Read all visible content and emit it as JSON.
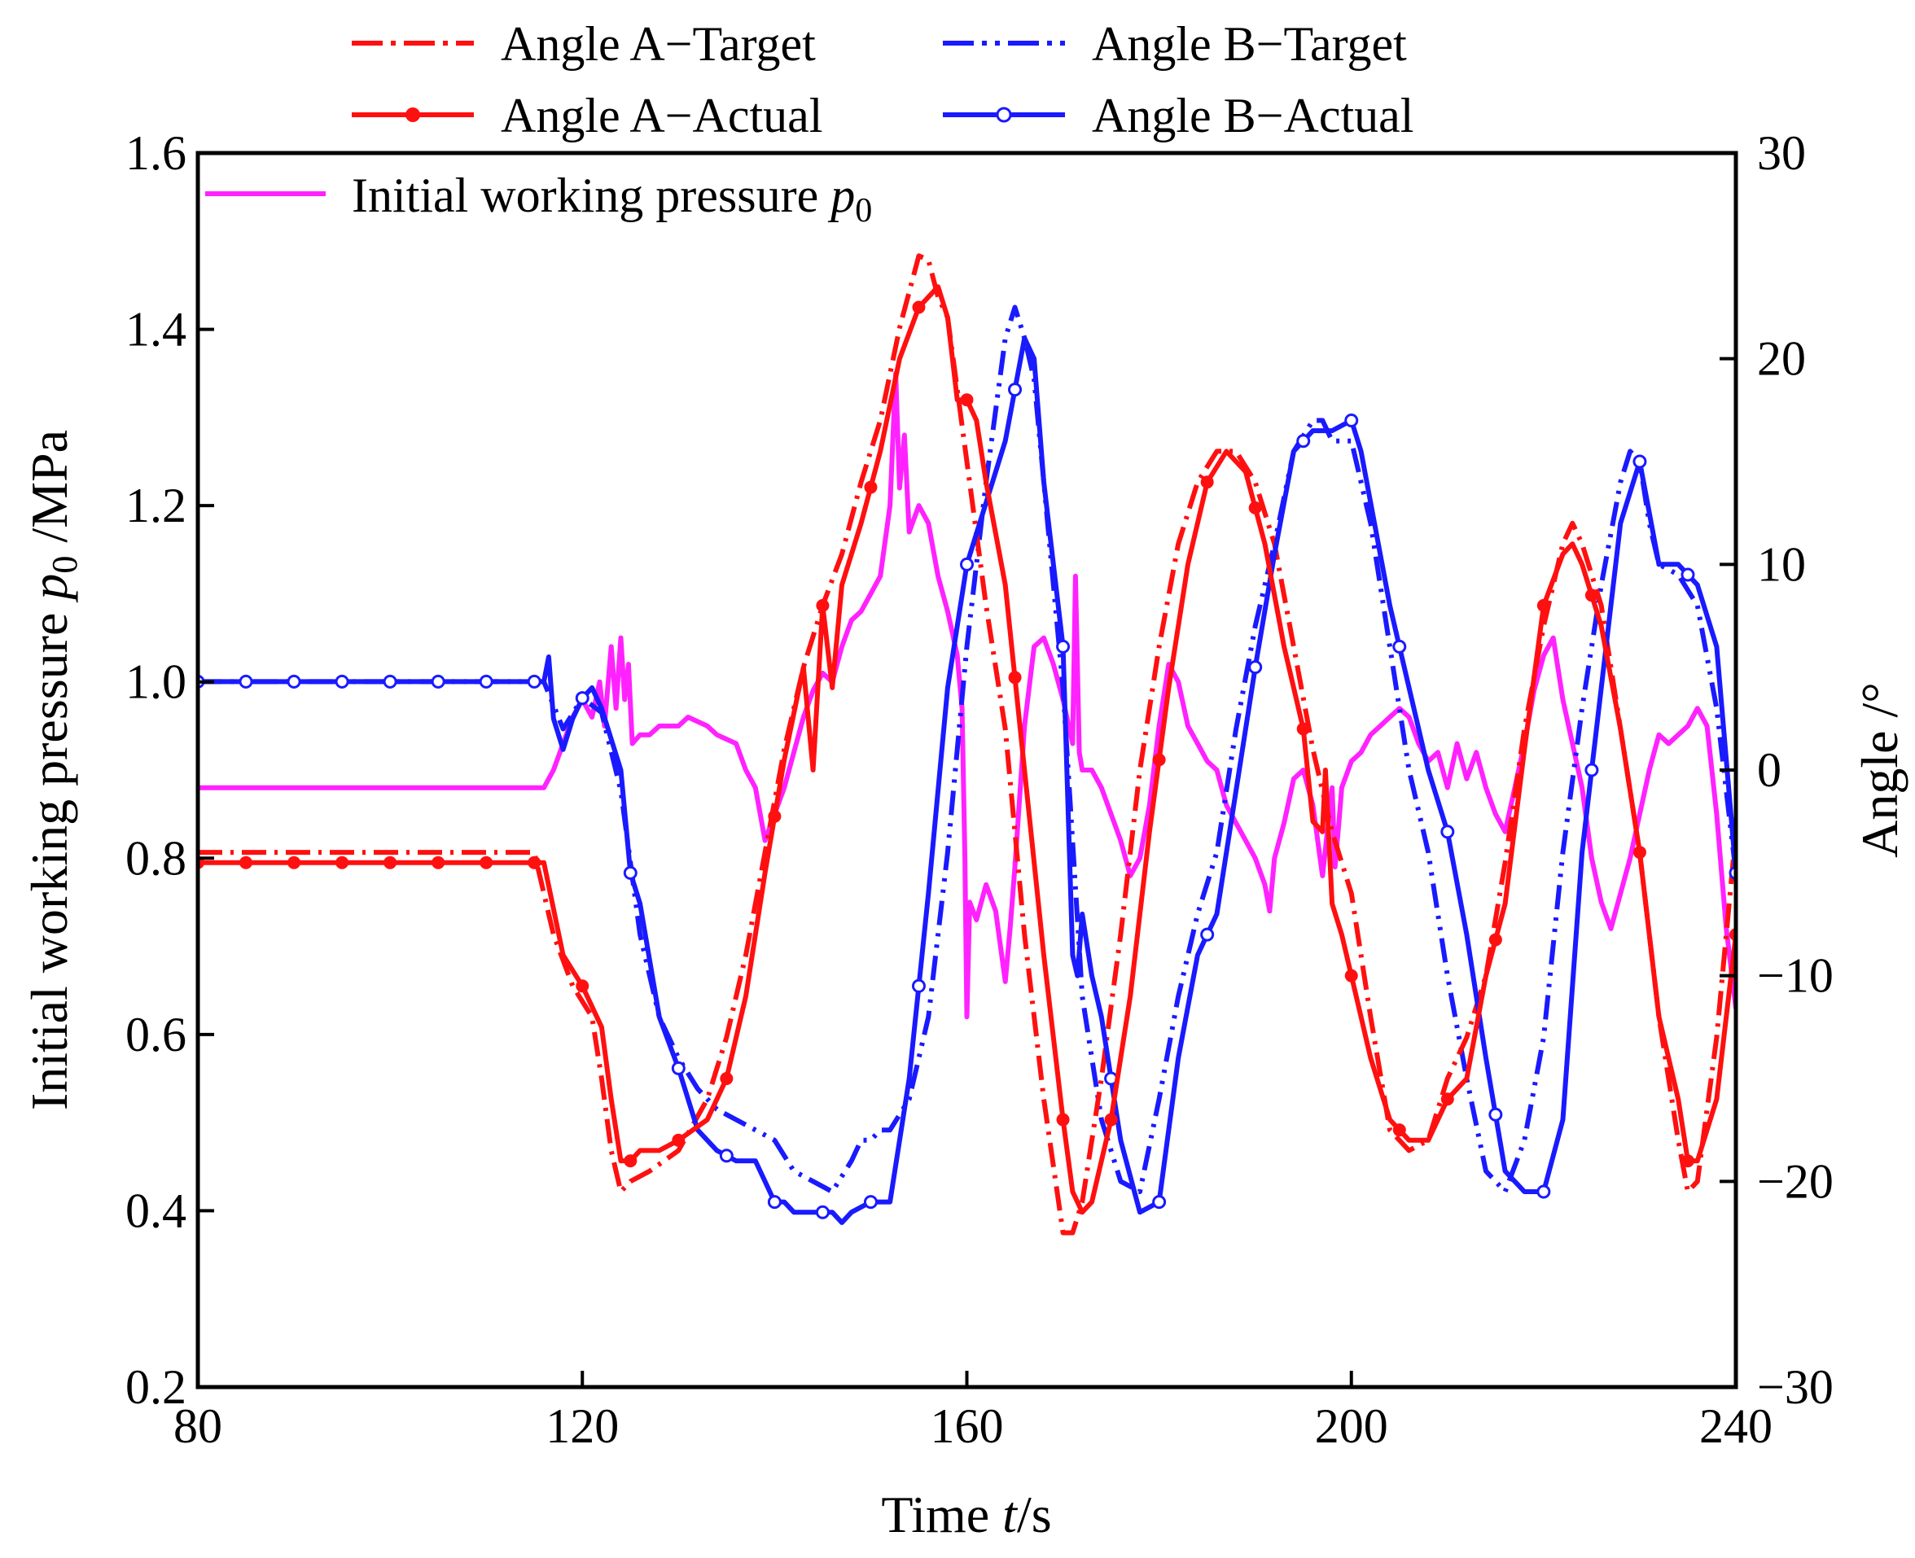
{
  "chart_data": {
    "type": "line",
    "xlabel": {
      "main": "Time",
      "var": "t",
      "unit": "/s"
    },
    "ylabel_left": {
      "main": "Initial working pressure",
      "var": "p",
      "sub": "0",
      "unit": "/MPa"
    },
    "ylabel_right": "Angle /°",
    "xlim": [
      80,
      240
    ],
    "ylim_left": [
      0.2,
      1.6
    ],
    "ylim_right": [
      -30,
      30
    ],
    "x_ticks": [
      "80",
      "120",
      "160",
      "200",
      "240"
    ],
    "x_tick_values": [
      80,
      120,
      160,
      200,
      240
    ],
    "y_left_ticks": [
      "0.2",
      "0.4",
      "0.6",
      "0.8",
      "1.0",
      "1.2",
      "1.4",
      "1.6"
    ],
    "y_left_tick_values": [
      0.2,
      0.4,
      0.6,
      0.8,
      1.0,
      1.2,
      1.4,
      1.6
    ],
    "y_right_ticks": [
      "−30",
      "−20",
      "−10",
      "0",
      "10",
      "20",
      "30"
    ],
    "y_right_tick_values": [
      -30,
      -20,
      -10,
      0,
      10,
      20,
      30
    ],
    "legend": {
      "placement": "top",
      "a_target": "Angle A−Target",
      "b_target": "Angle B−Target",
      "a_actual": "Angle A−Actual",
      "b_actual": "Angle B−Actual",
      "pressure": {
        "main": "Initial working pressure",
        "var": "p",
        "sub": "0"
      }
    },
    "colors": {
      "red": "#ff1010",
      "blue": "#1a1aff",
      "magenta": "#ff22ff"
    },
    "series": [
      {
        "key": "pressure",
        "name": "Initial working pressure p0",
        "axis": "left",
        "style": "solid",
        "color": "#ff22ff",
        "x": [
          80,
          116,
          117,
          118,
          119,
          120,
          121,
          121.8,
          122.3,
          123,
          123.5,
          124,
          124.4,
          124.8,
          125.2,
          126,
          127,
          128,
          130,
          131,
          133,
          134,
          136,
          137,
          138,
          139,
          140,
          141,
          143,
          144,
          145,
          146,
          147,
          148,
          149,
          150,
          151,
          152,
          152.6,
          153,
          153.5,
          154,
          155,
          156,
          157,
          158,
          159,
          159.5,
          159.8,
          160,
          160.3,
          161,
          162,
          163,
          164,
          164.5,
          165,
          166,
          167,
          168,
          169,
          170,
          171,
          171.3,
          171.7,
          172,
          173,
          174,
          175,
          176,
          177,
          178,
          179,
          180,
          181,
          182,
          183,
          184,
          185,
          186,
          187,
          188,
          189,
          190,
          191,
          191.5,
          192,
          193,
          194,
          195,
          196,
          197,
          198,
          198.3,
          198.7,
          199,
          200,
          201,
          202,
          203,
          204,
          205,
          206,
          207,
          208,
          209,
          210,
          211,
          212,
          213,
          214,
          215,
          216,
          217,
          218,
          219,
          220,
          221,
          222,
          223,
          224,
          225,
          226,
          227,
          228,
          229,
          230,
          231,
          232,
          233,
          234,
          235,
          236,
          237,
          238,
          239,
          240
        ],
        "values": [
          0.88,
          0.88,
          0.9,
          0.93,
          0.96,
          0.98,
          0.96,
          1.0,
          0.95,
          1.04,
          0.97,
          1.05,
          0.98,
          1.02,
          0.93,
          0.94,
          0.94,
          0.95,
          0.95,
          0.96,
          0.95,
          0.94,
          0.93,
          0.9,
          0.88,
          0.82,
          0.85,
          0.88,
          0.96,
          0.99,
          1.01,
          1.0,
          1.04,
          1.07,
          1.08,
          1.1,
          1.12,
          1.2,
          1.35,
          1.22,
          1.28,
          1.17,
          1.2,
          1.18,
          1.12,
          1.08,
          1.03,
          0.97,
          0.8,
          0.62,
          0.75,
          0.73,
          0.77,
          0.74,
          0.66,
          0.72,
          0.79,
          0.95,
          1.04,
          1.05,
          1.02,
          0.98,
          0.93,
          1.12,
          0.92,
          0.9,
          0.9,
          0.88,
          0.85,
          0.82,
          0.78,
          0.8,
          0.86,
          0.95,
          1.02,
          1.0,
          0.95,
          0.93,
          0.91,
          0.9,
          0.86,
          0.84,
          0.82,
          0.8,
          0.77,
          0.74,
          0.8,
          0.84,
          0.89,
          0.9,
          0.86,
          0.78,
          0.88,
          0.79,
          0.84,
          0.88,
          0.91,
          0.92,
          0.94,
          0.95,
          0.96,
          0.97,
          0.96,
          0.93,
          0.91,
          0.92,
          0.88,
          0.93,
          0.89,
          0.92,
          0.88,
          0.85,
          0.83,
          0.88,
          0.93,
          0.99,
          1.03,
          1.05,
          0.98,
          0.93,
          0.88,
          0.8,
          0.75,
          0.72,
          0.76,
          0.8,
          0.85,
          0.9,
          0.94,
          0.93,
          0.94,
          0.95,
          0.97,
          0.95,
          0.85,
          0.72,
          0.63
        ]
      },
      {
        "key": "a_target",
        "name": "Angle A−Target",
        "axis": "right",
        "style": "dashdot",
        "color": "#ff1010",
        "x": [
          80,
          115,
          117,
          119,
          121,
          122,
          123,
          124,
          125,
          127,
          130,
          133,
          135,
          137,
          139,
          141,
          143,
          145,
          147,
          149,
          151,
          153,
          155,
          156,
          157,
          158,
          160,
          162,
          164,
          166,
          168,
          170,
          171,
          172,
          174,
          176,
          178,
          180,
          182,
          184,
          186,
          188,
          190,
          192,
          194,
          196,
          198,
          200,
          202,
          204,
          206,
          208,
          210,
          212,
          214,
          216,
          218,
          220,
          222,
          223,
          224,
          226,
          228,
          230,
          232,
          234,
          235,
          236,
          238,
          240
        ],
        "values": [
          -4,
          -4,
          -8,
          -10.5,
          -12,
          -15,
          -18.5,
          -20.5,
          -20,
          -19.5,
          -18.5,
          -16,
          -13,
          -9,
          -4,
          1,
          5,
          8,
          10.5,
          14,
          17,
          21.5,
          25,
          24.8,
          23,
          22,
          15,
          8,
          2,
          -8,
          -16,
          -22.5,
          -22.5,
          -21,
          -15,
          -8,
          0,
          6,
          11,
          14,
          15.5,
          15.5,
          14,
          11,
          6,
          1,
          -3,
          -6,
          -12,
          -17.5,
          -18.5,
          -18,
          -15,
          -13,
          -10,
          -4.5,
          2,
          7,
          11,
          12,
          11,
          8,
          2,
          -4,
          -12,
          -18,
          -20.5,
          -20,
          -13,
          -3
        ]
      },
      {
        "key": "a_actual",
        "name": "Angle A−Actual",
        "axis": "right",
        "style": "solid-marker",
        "color": "#ff1010",
        "x": [
          80,
          116,
          118,
          120,
          122,
          123,
          124,
          125,
          126,
          128,
          130,
          133,
          135,
          137,
          139,
          141,
          143,
          144,
          145,
          146,
          147,
          149,
          151,
          153,
          155,
          157,
          158,
          159,
          160,
          161,
          162,
          164,
          166,
          168,
          170,
          171,
          172,
          173,
          175,
          177,
          179,
          181,
          183,
          185,
          187,
          189,
          191,
          193,
          195,
          196,
          197,
          197.3,
          198,
          199,
          200,
          202,
          204,
          206,
          208,
          210,
          212,
          214,
          216,
          218,
          220,
          222,
          223,
          224,
          226,
          228,
          230,
          232,
          234,
          235,
          236,
          238,
          240
        ],
        "values": [
          -4.5,
          -4.5,
          -9,
          -10.5,
          -12.5,
          -16,
          -19,
          -19,
          -18.5,
          -18.5,
          -18,
          -17,
          -15,
          -11,
          -5,
          0.5,
          5,
          0,
          8,
          4,
          9,
          12,
          15.5,
          20,
          22.5,
          23.5,
          22,
          18,
          18,
          17,
          14,
          9,
          0,
          -9,
          -17,
          -20.5,
          -21.5,
          -21,
          -17,
          -11,
          -3,
          4,
          10,
          14,
          15.5,
          14.5,
          11,
          6,
          2,
          -2.5,
          -3,
          0,
          -6.5,
          -8,
          -10,
          -14,
          -17,
          -18,
          -18,
          -16,
          -15,
          -10,
          -6.5,
          1,
          8,
          10.5,
          11,
          10,
          7,
          2,
          -4,
          -12,
          -16,
          -19,
          -19,
          -16,
          -8
        ]
      },
      {
        "key": "b_target",
        "name": "Angle B−Target",
        "axis": "right",
        "style": "dashdot",
        "color": "#1a1aff",
        "x": [
          80,
          116,
          118,
          120,
          122,
          124,
          126,
          128,
          130,
          132,
          134,
          136,
          138,
          140,
          142,
          144,
          146,
          148,
          149,
          150,
          151,
          152,
          154,
          156,
          158,
          160,
          162,
          164,
          165,
          166,
          167,
          168,
          170,
          172,
          174,
          176,
          178,
          180,
          182,
          184,
          186,
          188,
          190,
          192,
          194,
          196,
          197,
          198,
          200,
          202,
          204,
          206,
          208,
          210,
          212,
          214,
          215,
          216,
          218,
          220,
          222,
          224,
          226,
          228,
          229,
          230,
          231,
          232,
          234,
          236,
          238,
          240
        ],
        "values": [
          4.3,
          4.3,
          2,
          3.5,
          2.8,
          -1,
          -8,
          -12,
          -14,
          -15.5,
          -16.5,
          -17,
          -17.5,
          -18,
          -19.5,
          -20,
          -20.5,
          -19,
          -18,
          -18,
          -17.5,
          -17.5,
          -16,
          -12,
          -4,
          6,
          14,
          21,
          22.5,
          21,
          19,
          14,
          4,
          -11,
          -17,
          -20,
          -20.5,
          -16,
          -11,
          -7,
          -4,
          2,
          7,
          11,
          15.5,
          17,
          17,
          16,
          16,
          12,
          6,
          0,
          -4,
          -10,
          -15,
          -19.5,
          -20,
          -20.5,
          -18,
          -13,
          -4,
          3,
          9,
          14,
          15.5,
          15,
          12,
          10,
          9.5,
          8,
          3,
          -5
        ]
      },
      {
        "key": "b_actual",
        "name": "Angle B−Actual",
        "axis": "right",
        "style": "solid-hollow",
        "color": "#1a1aff",
        "x": [
          80,
          116,
          116.5,
          117,
          118,
          119,
          120,
          121,
          122,
          124,
          125,
          126,
          128,
          130,
          132,
          134,
          136,
          138,
          140,
          141,
          142,
          144,
          146,
          147,
          148,
          150,
          152,
          154,
          156,
          158,
          160,
          162,
          164,
          166,
          167,
          168,
          170,
          171,
          171.5,
          172,
          173,
          174,
          176,
          178,
          180,
          182,
          184,
          186,
          188,
          190,
          192,
          194,
          196,
          198,
          200,
          201,
          202,
          204,
          206,
          208,
          210,
          212,
          214,
          216,
          218,
          220,
          222,
          224,
          226,
          228,
          230,
          232,
          234,
          236,
          238,
          240
        ],
        "values": [
          4.3,
          4.3,
          5.5,
          2.5,
          1,
          2.5,
          3.5,
          4,
          3,
          0,
          -5,
          -6.5,
          -12,
          -14.5,
          -17.5,
          -18.5,
          -19,
          -19,
          -21,
          -21,
          -21.5,
          -21.5,
          -21.5,
          -22,
          -21.5,
          -21,
          -21,
          -15,
          -6,
          4,
          10,
          13,
          16,
          21,
          20,
          14,
          6,
          -9,
          -10,
          -7,
          -10,
          -12,
          -18,
          -21.5,
          -21,
          -14,
          -9,
          -7,
          -1,
          5,
          10.5,
          15.5,
          16.5,
          16.5,
          17,
          15.5,
          13,
          8,
          4,
          0,
          -3,
          -8,
          -14,
          -19.5,
          -20.5,
          -20.5,
          -17,
          -4,
          4,
          12,
          15,
          10,
          10,
          9,
          6,
          -5
        ]
      }
    ]
  }
}
